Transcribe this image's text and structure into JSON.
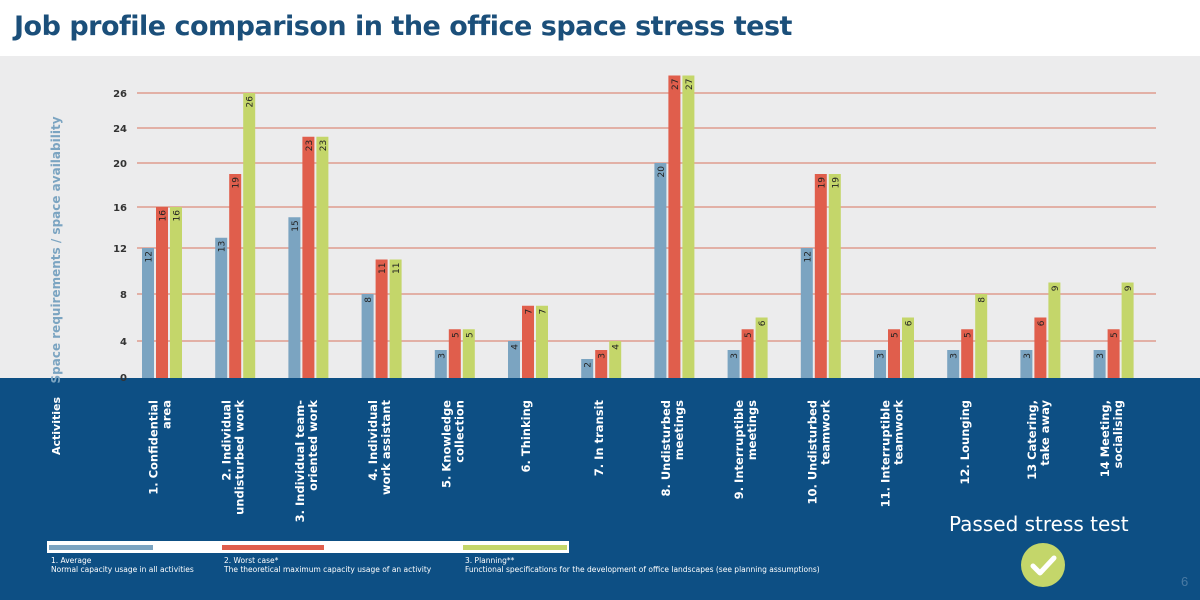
{
  "title": "Job profile comparison in the office space stress test",
  "colors": {
    "title": "#1b4f7a",
    "average": "#7ba4c1",
    "worst": "#e05e4c",
    "planning": "#c4d66a",
    "grid": "#d9735f",
    "panel": "#0d4f84"
  },
  "chart_data": {
    "type": "bar",
    "ylabel": "Space requirements / space availability",
    "xlabel": "Activities",
    "yticks": [
      0,
      4,
      8,
      12,
      16,
      20,
      24,
      26
    ],
    "ylim": [
      0,
      27
    ],
    "categories": [
      [
        "1. Confidential",
        "area"
      ],
      [
        "2. Individual",
        "undisturbed work"
      ],
      [
        "3. Individual team-",
        "oriented work"
      ],
      [
        "4. Individual",
        "work assistant"
      ],
      [
        "5. Knowledge",
        "collection"
      ],
      [
        "6. Thinking"
      ],
      [
        "7. In transit"
      ],
      [
        "8. Undisturbed",
        "meetings"
      ],
      [
        "9. Interruptible",
        "meetings"
      ],
      [
        "10. Undisturbed",
        "teamwork"
      ],
      [
        "11. Interruptible",
        "teamwork"
      ],
      [
        "12. Lounging"
      ],
      [
        "13 Catering,",
        "take away"
      ],
      [
        "14 Meeting,",
        "socialising"
      ]
    ],
    "series": [
      {
        "name": "1. Average",
        "values": [
          12,
          13,
          15,
          8,
          3,
          4,
          2,
          20,
          3,
          12,
          3,
          3,
          3,
          3
        ]
      },
      {
        "name": "2. Worst case*",
        "values": [
          16,
          19,
          23,
          11,
          5,
          7,
          3,
          27,
          5,
          19,
          5,
          5,
          6,
          5
        ]
      },
      {
        "name": "3. Planning**",
        "values": [
          16,
          26,
          23,
          11,
          5,
          7,
          4,
          27,
          6,
          19,
          6,
          8,
          9,
          9
        ]
      }
    ]
  },
  "legend": [
    {
      "title": "1. Average",
      "desc": "Normal capacity usage in all activities"
    },
    {
      "title": "2. Worst case*",
      "desc": "The theoretical maximum capacity usage of an activity"
    },
    {
      "title": "3. Planning**",
      "desc": "Functional specifications for the development of office landscapes (see planning assumptions)"
    }
  ],
  "stress_test": {
    "label": "Passed stress test",
    "icon": "checkmark-icon"
  },
  "page_number": "6"
}
